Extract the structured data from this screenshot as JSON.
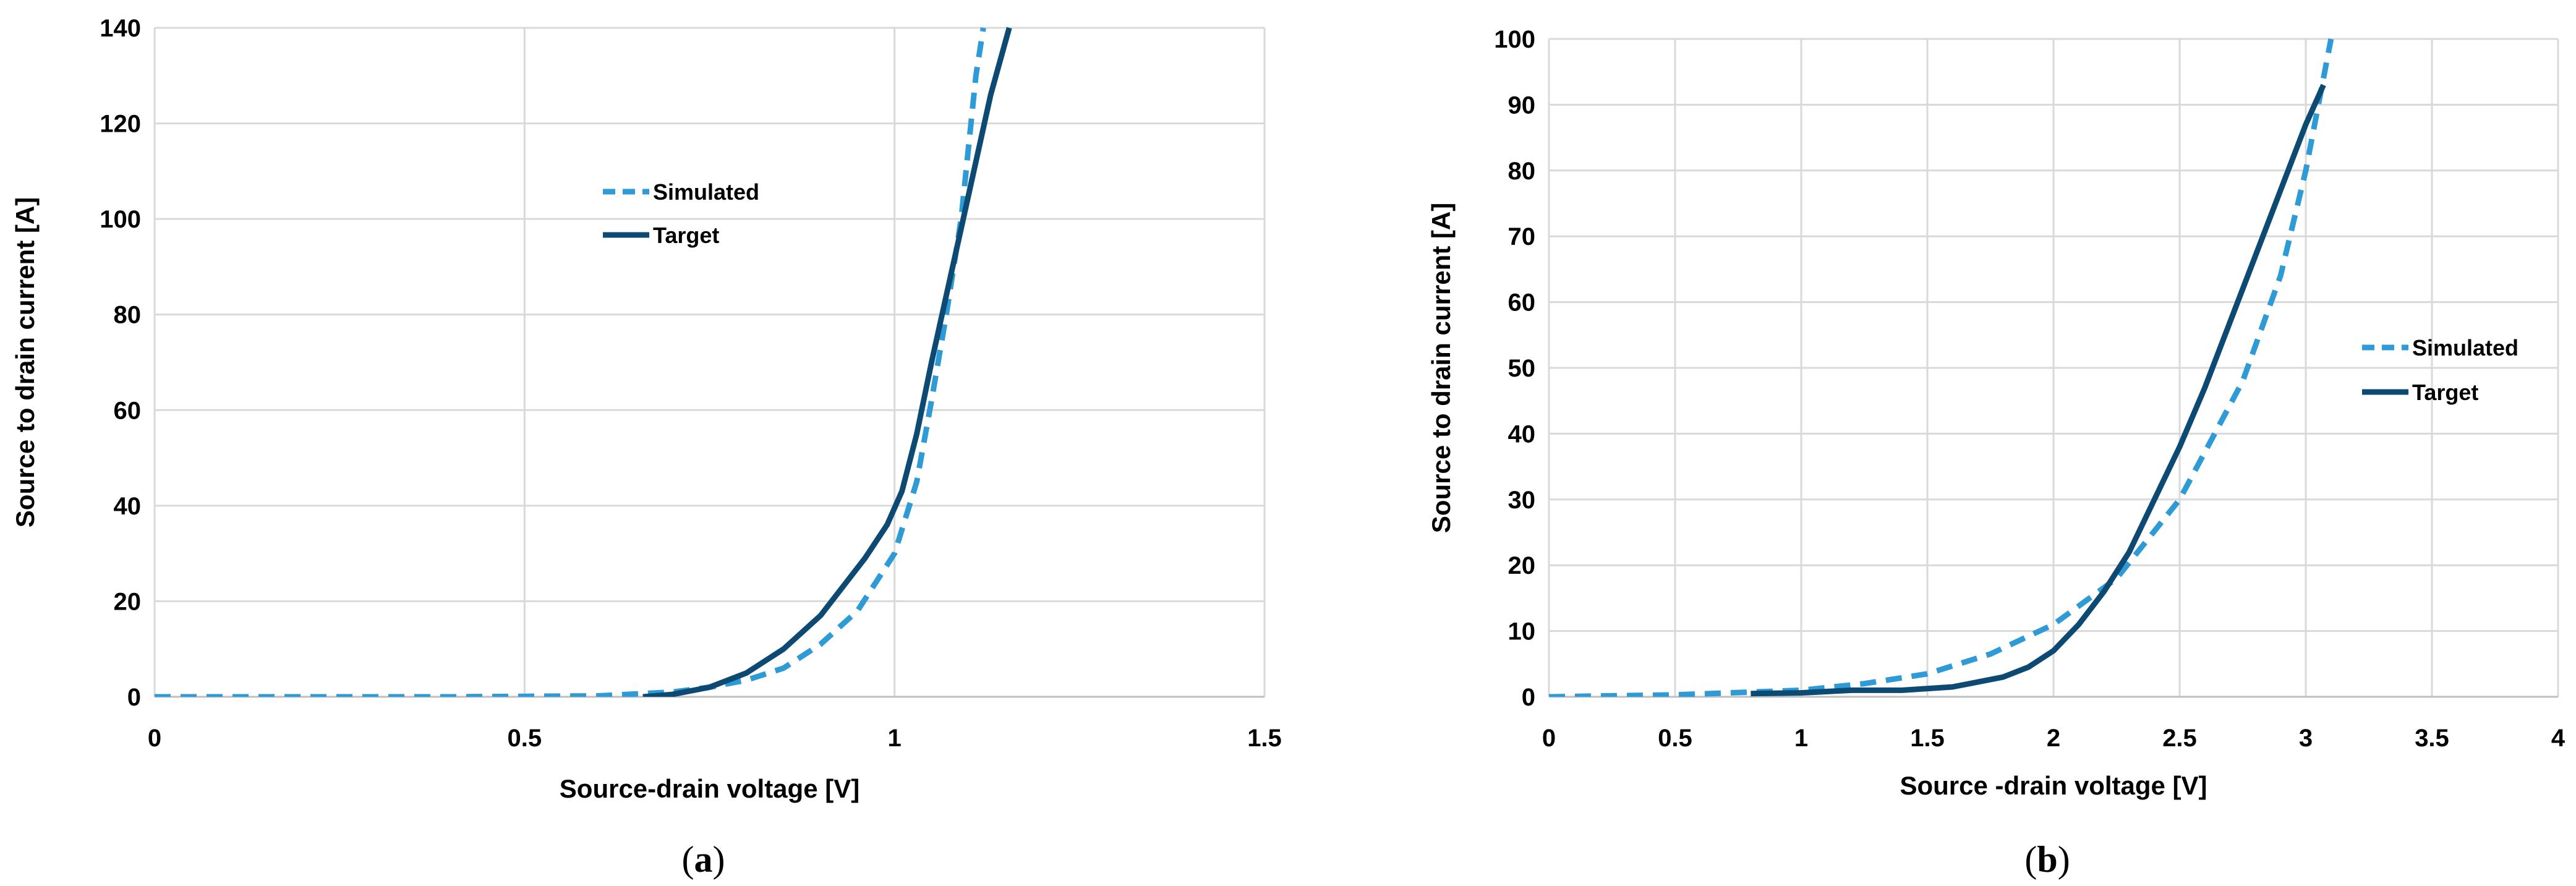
{
  "chart_data": [
    {
      "type": "line",
      "panel_label": {
        "open": "(",
        "letter": "a",
        "close": ")"
      },
      "xlabel": "Source-drain voltage [V]",
      "ylabel": "Source to drain current [A]",
      "xlim": [
        0,
        1.5
      ],
      "ylim": [
        0,
        140
      ],
      "x_ticks": [
        0,
        0.5,
        1,
        1.5
      ],
      "x_tick_labels": [
        "0",
        "0.5",
        "1",
        "1.5"
      ],
      "y_ticks": [
        0,
        20,
        40,
        60,
        80,
        100,
        120,
        140
      ],
      "y_tick_labels": [
        "0",
        "20",
        "40",
        "60",
        "80",
        "100",
        "120",
        "140"
      ],
      "grid": true,
      "legend_position": "upper-center",
      "series": [
        {
          "name": "Simulated",
          "color": "#2e9bd6",
          "style": "dashed",
          "x": [
            0,
            0.2,
            0.4,
            0.6,
            0.7,
            0.75,
            0.8,
            0.85,
            0.9,
            0.95,
            1.0,
            1.03,
            1.05,
            1.07,
            1.09,
            1.1,
            1.11,
            1.12
          ],
          "y": [
            0,
            0,
            0,
            0.2,
            1,
            2,
            3.5,
            6,
            11,
            18,
            30,
            45,
            62,
            80,
            100,
            115,
            130,
            140
          ]
        },
        {
          "name": "Target",
          "color": "#0d4a73",
          "style": "solid",
          "x": [
            0.66,
            0.7,
            0.75,
            0.8,
            0.85,
            0.9,
            0.93,
            0.96,
            0.99,
            1.01,
            1.03,
            1.05,
            1.07,
            1.09,
            1.11,
            1.13,
            1.155
          ],
          "y": [
            0,
            0.5,
            2,
            5,
            10,
            17,
            23,
            29,
            36,
            43,
            55,
            70,
            84,
            98,
            112,
            126,
            140
          ]
        }
      ]
    },
    {
      "type": "line",
      "panel_label": {
        "open": "(",
        "letter": "b",
        "close": ")"
      },
      "xlabel": "Source -drain voltage [V]",
      "ylabel": "Source to drain current [A]",
      "xlim": [
        0,
        4
      ],
      "ylim": [
        0,
        100
      ],
      "x_ticks": [
        0,
        0.5,
        1,
        1.5,
        2,
        2.5,
        3,
        3.5,
        4
      ],
      "x_tick_labels": [
        "0",
        "0.5",
        "1",
        "1.5",
        "2",
        "2.5",
        "3",
        "3.5",
        "4"
      ],
      "y_ticks": [
        0,
        10,
        20,
        30,
        40,
        50,
        60,
        70,
        80,
        90,
        100
      ],
      "y_tick_labels": [
        "0",
        "10",
        "20",
        "30",
        "40",
        "50",
        "60",
        "70",
        "80",
        "90",
        "100"
      ],
      "grid": true,
      "legend_position": "right",
      "series": [
        {
          "name": "Simulated",
          "color": "#2e9bd6",
          "style": "dashed",
          "x": [
            0,
            0.5,
            1.0,
            1.25,
            1.5,
            1.75,
            2.0,
            2.25,
            2.5,
            2.75,
            2.9,
            3.0,
            3.1
          ],
          "y": [
            0,
            0.3,
            1,
            2,
            3.5,
            6.5,
            11,
            18,
            30,
            48,
            64,
            80,
            100
          ]
        },
        {
          "name": "Target",
          "color": "#0d4a73",
          "style": "solid",
          "x": [
            0.8,
            1.0,
            1.2,
            1.4,
            1.6,
            1.8,
            1.9,
            2.0,
            2.1,
            2.2,
            2.3,
            2.4,
            2.5,
            2.6,
            2.7,
            2.8,
            2.9,
            3.0,
            3.07
          ],
          "y": [
            0.5,
            0.6,
            1,
            1,
            1.5,
            3,
            4.5,
            7,
            11,
            16,
            22,
            30,
            38,
            47,
            57,
            67,
            77,
            87,
            93
          ]
        }
      ]
    }
  ]
}
